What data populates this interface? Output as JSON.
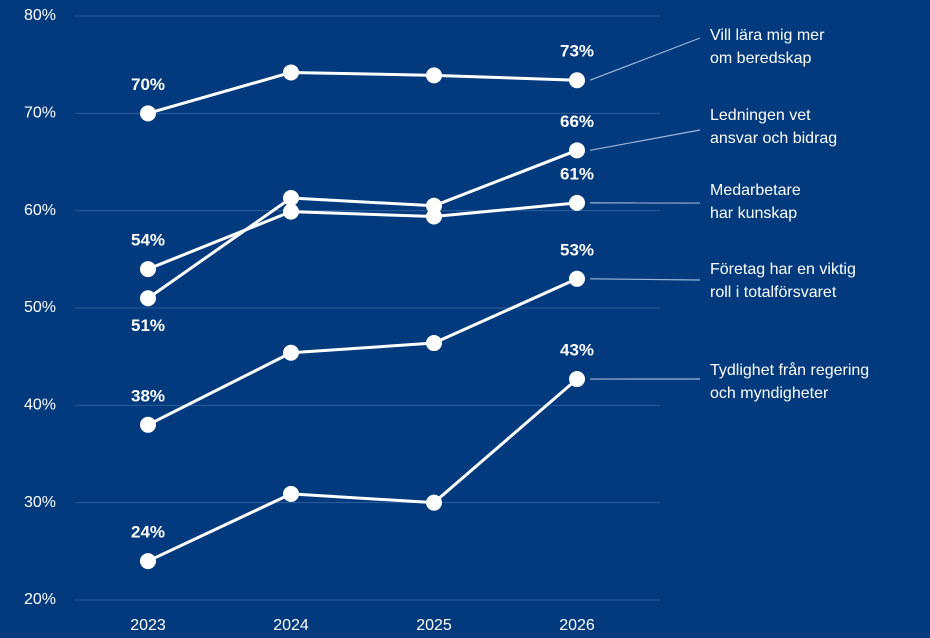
{
  "chart_data": {
    "type": "line",
    "categories": [
      "2023",
      "2024",
      "2025",
      "2026"
    ],
    "ylim": [
      20,
      80
    ],
    "yticks": [
      {
        "value": 20,
        "label": "20%"
      },
      {
        "value": 30,
        "label": "30%"
      },
      {
        "value": 40,
        "label": "40%"
      },
      {
        "value": 50,
        "label": "50%"
      },
      {
        "value": 60,
        "label": "60%"
      },
      {
        "value": 70,
        "label": "70%"
      },
      {
        "value": 80,
        "label": "80%"
      }
    ],
    "grid": true,
    "series": [
      {
        "name": "Vill lära mig mer\nom beredskap",
        "color": "#ffffff",
        "values": [
          70,
          74.2,
          73.9,
          73.4
        ],
        "value_labels": [
          "70%",
          null,
          null,
          "73%"
        ]
      },
      {
        "name": "Ledningen vet\nansvar och bidrag",
        "color": "#ffffff",
        "values": [
          51,
          61.3,
          60.5,
          66.2
        ],
        "value_labels": [
          "51%",
          null,
          null,
          "66%"
        ]
      },
      {
        "name": "Medarbetare\nhar kunskap",
        "color": "#ffffff",
        "values": [
          54,
          59.9,
          59.4,
          60.8
        ],
        "value_labels": [
          "54%",
          null,
          null,
          "61%"
        ]
      },
      {
        "name": "Företag har en viktig\nroll i totalförsvaret",
        "color": "#ffffff",
        "values": [
          38,
          45.4,
          46.4,
          53
        ],
        "value_labels": [
          "38%",
          null,
          null,
          "53%"
        ]
      },
      {
        "name": "Tydlighet från regering\noch myndigheter",
        "color": "#ffffff",
        "values": [
          24,
          30.9,
          30,
          42.7
        ],
        "value_labels": [
          "24%",
          null,
          null,
          "43%"
        ]
      }
    ]
  }
}
